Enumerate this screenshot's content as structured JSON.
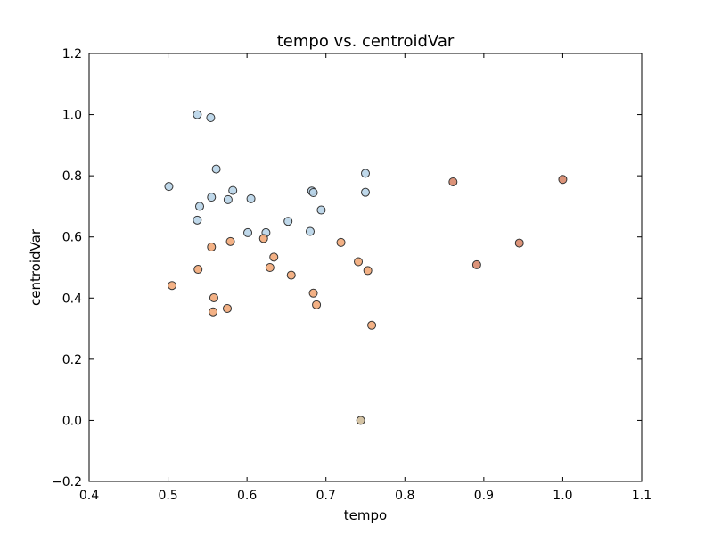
{
  "chart_data": {
    "type": "scatter",
    "title": "tempo vs. centroidVar",
    "xlabel": "tempo",
    "ylabel": "centroidVar",
    "xlim": [
      0.4,
      1.1
    ],
    "ylim": [
      -0.2,
      1.2
    ],
    "xticks": [
      "0.4",
      "0.5",
      "0.6",
      "0.7",
      "0.8",
      "0.9",
      "1.0",
      "1.1"
    ],
    "yticks": [
      "−0.2",
      "0.0",
      "0.2",
      "0.4",
      "0.6",
      "0.8",
      "1.0",
      "1.2"
    ],
    "grid": false,
    "series": [
      {
        "color": "#b8d4e8",
        "points": [
          {
            "x": 0.537,
            "y": 1.0
          },
          {
            "x": 0.554,
            "y": 0.99
          },
          {
            "x": 0.561,
            "y": 0.822
          },
          {
            "x": 0.75,
            "y": 0.808
          },
          {
            "x": 0.501,
            "y": 0.765
          },
          {
            "x": 0.582,
            "y": 0.752
          },
          {
            "x": 0.682,
            "y": 0.75
          },
          {
            "x": 0.684,
            "y": 0.745
          },
          {
            "x": 0.75,
            "y": 0.746
          },
          {
            "x": 0.555,
            "y": 0.73
          },
          {
            "x": 0.605,
            "y": 0.725
          },
          {
            "x": 0.576,
            "y": 0.722
          },
          {
            "x": 0.54,
            "y": 0.7
          },
          {
            "x": 0.694,
            "y": 0.688
          },
          {
            "x": 0.537,
            "y": 0.655
          },
          {
            "x": 0.652,
            "y": 0.651
          },
          {
            "x": 0.68,
            "y": 0.618
          },
          {
            "x": 0.601,
            "y": 0.614
          },
          {
            "x": 0.624,
            "y": 0.614
          }
        ]
      },
      {
        "color": "#f2a878",
        "points": [
          {
            "x": 0.621,
            "y": 0.595
          },
          {
            "x": 0.579,
            "y": 0.585
          },
          {
            "x": 0.719,
            "y": 0.582
          },
          {
            "x": 0.555,
            "y": 0.567
          },
          {
            "x": 0.634,
            "y": 0.534
          },
          {
            "x": 0.741,
            "y": 0.519
          },
          {
            "x": 0.629,
            "y": 0.5
          },
          {
            "x": 0.538,
            "y": 0.494
          },
          {
            "x": 0.753,
            "y": 0.49
          },
          {
            "x": 0.656,
            "y": 0.475
          },
          {
            "x": 0.505,
            "y": 0.441
          },
          {
            "x": 0.684,
            "y": 0.416
          },
          {
            "x": 0.558,
            "y": 0.401
          },
          {
            "x": 0.688,
            "y": 0.378
          },
          {
            "x": 0.575,
            "y": 0.366
          },
          {
            "x": 0.557,
            "y": 0.355
          },
          {
            "x": 0.758,
            "y": 0.311
          }
        ]
      },
      {
        "color": "#d8876a",
        "points": [
          {
            "x": 0.861,
            "y": 0.78
          },
          {
            "x": 1.0,
            "y": 0.788
          },
          {
            "x": 0.945,
            "y": 0.58
          },
          {
            "x": 0.891,
            "y": 0.509
          }
        ]
      },
      {
        "color": "#cfbc9a",
        "points": [
          {
            "x": 0.744,
            "y": 0.0
          }
        ]
      }
    ]
  }
}
